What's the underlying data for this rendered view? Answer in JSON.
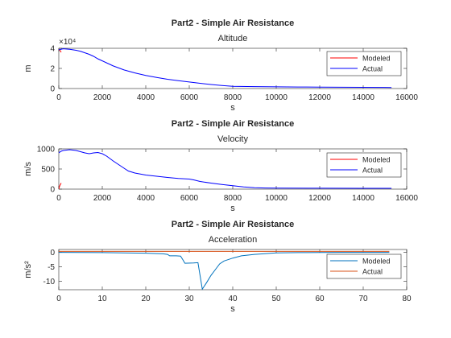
{
  "chart_data": [
    {
      "type": "line",
      "title": "Part2 - Simple Air Resistance",
      "subtitle": "Altitude",
      "xlabel": "s",
      "ylabel": "m",
      "exponent_label": "×10⁴",
      "xlim": [
        0,
        16000
      ],
      "ylim": [
        0,
        40000
      ],
      "xticks": [
        0,
        2000,
        4000,
        6000,
        8000,
        10000,
        12000,
        14000,
        16000
      ],
      "xtick_labels": [
        "0",
        "2000",
        "4000",
        "6000",
        "8000",
        "10000",
        "12000",
        "14000",
        "16000"
      ],
      "yticks": [
        0,
        20000,
        40000
      ],
      "ytick_labels": [
        "0",
        "2",
        "4"
      ],
      "legend_location": "north-east",
      "series": [
        {
          "name": "Modeled",
          "color": "#ff0000",
          "x": [
            0,
            40,
            80,
            110
          ],
          "y": [
            39000,
            38200,
            37200,
            36000
          ]
        },
        {
          "name": "Actual",
          "color": "#0000ff",
          "x": [
            0,
            200,
            500,
            800,
            1000,
            1200,
            1400,
            1600,
            1800,
            2000,
            2200,
            2500,
            3000,
            3500,
            4000,
            4500,
            5000,
            5500,
            6000,
            6500,
            7000,
            7500,
            8000,
            9000,
            10000,
            11000,
            12000,
            13000,
            14000,
            15000,
            15300
          ],
          "y": [
            38500,
            39500,
            39000,
            38000,
            37000,
            35500,
            34000,
            32000,
            29500,
            27500,
            25500,
            22500,
            18500,
            15500,
            13000,
            11000,
            9200,
            7800,
            6500,
            5200,
            4000,
            3000,
            2200,
            1900,
            1700,
            1500,
            1400,
            1300,
            1200,
            1100,
            1050
          ]
        }
      ]
    },
    {
      "type": "line",
      "title": "Part2 - Simple Air Resistance",
      "subtitle": "Velocity",
      "xlabel": "s",
      "ylabel": "m/s",
      "xlim": [
        0,
        16000
      ],
      "ylim": [
        0,
        1000
      ],
      "xticks": [
        0,
        2000,
        4000,
        6000,
        8000,
        10000,
        12000,
        14000,
        16000
      ],
      "xtick_labels": [
        "0",
        "2000",
        "4000",
        "6000",
        "8000",
        "10000",
        "12000",
        "14000",
        "16000"
      ],
      "yticks": [
        0,
        500,
        1000
      ],
      "ytick_labels": [
        "0",
        "500",
        "1000"
      ],
      "legend_location": "north-east",
      "series": [
        {
          "name": "Modeled",
          "color": "#ff0000",
          "x": [
            0,
            40,
            80,
            110
          ],
          "y": [
            0,
            80,
            120,
            150
          ]
        },
        {
          "name": "Actual",
          "color": "#0000ff",
          "x": [
            0,
            100,
            200,
            500,
            800,
            1000,
            1200,
            1400,
            1600,
            1800,
            2000,
            2200,
            2500,
            3000,
            3200,
            3500,
            4000,
            4500,
            5000,
            5500,
            6000,
            6200,
            6500,
            7000,
            7500,
            8000,
            8500,
            9000,
            9500,
            10000,
            12000,
            14000,
            15300
          ],
          "y": [
            900,
            940,
            960,
            980,
            960,
            930,
            900,
            880,
            900,
            910,
            880,
            820,
            700,
            520,
            450,
            400,
            350,
            320,
            290,
            265,
            250,
            230,
            190,
            150,
            115,
            85,
            55,
            35,
            28,
            25,
            22,
            20,
            20
          ]
        }
      ]
    },
    {
      "type": "line",
      "title": "Part2 - Simple Air Resistance",
      "subtitle": "Acceleration",
      "xlabel": "s",
      "ylabel": "m/s²",
      "xlim": [
        0,
        80
      ],
      "ylim": [
        -13,
        1
      ],
      "xticks": [
        0,
        10,
        20,
        30,
        40,
        50,
        60,
        70,
        80
      ],
      "xtick_labels": [
        "0",
        "10",
        "20",
        "30",
        "40",
        "50",
        "60",
        "70",
        "80"
      ],
      "yticks": [
        -10,
        -5,
        0
      ],
      "ytick_labels": [
        "-10",
        "-5",
        "0"
      ],
      "legend_location": "north-east",
      "series": [
        {
          "name": "Modeled",
          "color": "#0072bd",
          "x": [
            0,
            5,
            10,
            15,
            20,
            22,
            24,
            25,
            25.5,
            27,
            28,
            28.5,
            29,
            31,
            32,
            33,
            34,
            35,
            36,
            37,
            38,
            40,
            42,
            45,
            48,
            50,
            55,
            60,
            65,
            70,
            76
          ],
          "y": [
            0,
            -0.05,
            -0.1,
            -0.2,
            -0.3,
            -0.4,
            -0.5,
            -0.7,
            -1.2,
            -1.2,
            -1.3,
            -2.5,
            -3.8,
            -3.7,
            -3.6,
            -12.8,
            -10.5,
            -8,
            -6,
            -4,
            -3,
            -2,
            -1.2,
            -0.7,
            -0.4,
            -0.2,
            -0.1,
            -0.05,
            0,
            0,
            0
          ]
        },
        {
          "name": "Actual",
          "color": "#d95319",
          "x": [
            0,
            76
          ],
          "y": [
            0.35,
            0.35
          ]
        }
      ]
    }
  ]
}
